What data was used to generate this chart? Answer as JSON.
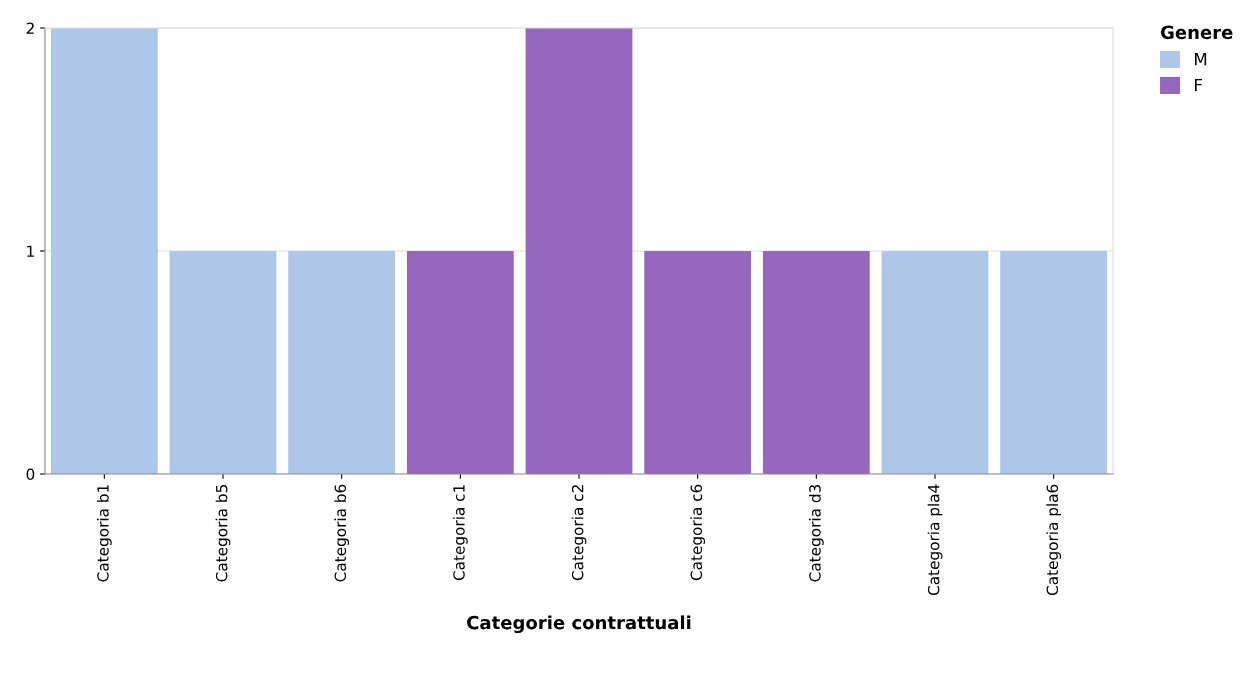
{
  "chart_data": {
    "type": "bar",
    "xlabel": "Categorie contrattuali",
    "legend_title": "Genere",
    "categories": [
      "Categoria b1",
      "Categoria b5",
      "Categoria b6",
      "Categoria c1",
      "Categoria c2",
      "Categoria c6",
      "Categoria d3",
      "Categoria pla4",
      "Categoria pla6"
    ],
    "series": [
      {
        "name": "M",
        "color": "#aec7e8",
        "values": [
          2,
          1,
          1,
          null,
          null,
          null,
          null,
          1,
          1
        ]
      },
      {
        "name": "F",
        "color": "#9467bd",
        "values": [
          null,
          null,
          null,
          1,
          2,
          1,
          1,
          null,
          null
        ]
      }
    ],
    "ylim": [
      0,
      2
    ],
    "yticks": [
      0,
      1,
      2
    ],
    "grid": "y",
    "legend": "top right"
  }
}
